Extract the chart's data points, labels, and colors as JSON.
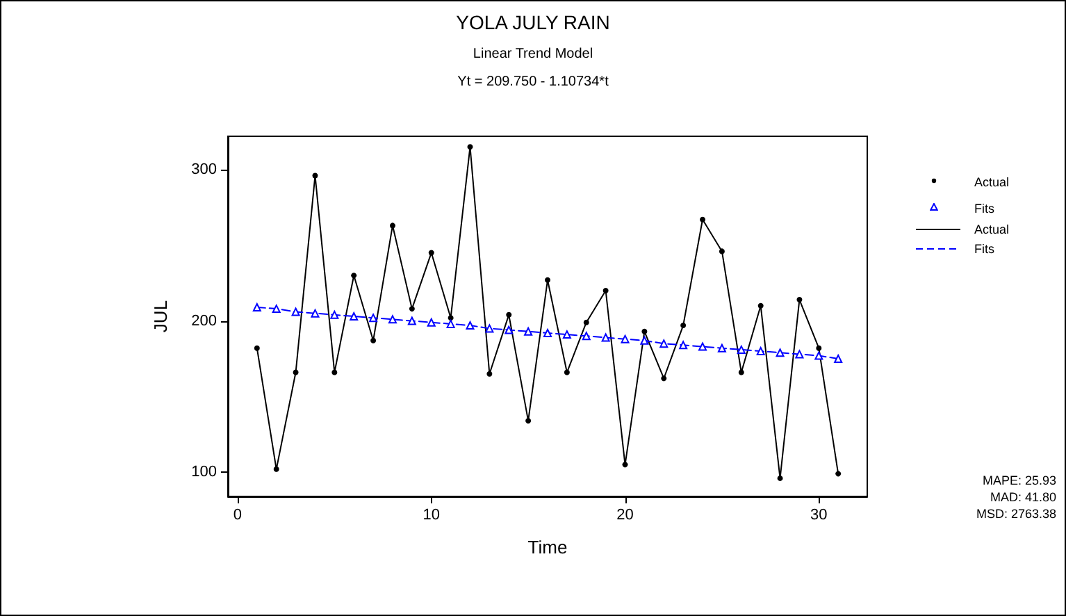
{
  "chart_data": {
    "type": "line",
    "title": "YOLA JULY RAIN",
    "subtitle": "Linear Trend Model\nYt = 209.750 - 1.10734*t",
    "xlabel": "Time",
    "ylabel": "JUL",
    "x": [
      1,
      2,
      3,
      4,
      5,
      6,
      7,
      8,
      9,
      10,
      11,
      12,
      13,
      14,
      15,
      16,
      17,
      18,
      19,
      20,
      21,
      22,
      23,
      24,
      25,
      26,
      27,
      28,
      29,
      30,
      31
    ],
    "series": [
      {
        "name": "Actual",
        "color": "#000000",
        "marker": "circle",
        "line_style": "solid",
        "values": [
          182,
          102,
          166,
          296,
          166,
          230,
          187,
          263,
          208,
          245,
          202,
          315,
          165,
          204,
          134,
          227,
          166,
          199,
          220,
          105,
          193,
          162,
          197,
          267,
          246,
          166,
          210,
          96,
          214,
          182,
          99
        ]
      },
      {
        "name": "Fits",
        "color": "#0000ff",
        "marker": "triangle",
        "line_style": "dashed",
        "values": [
          209,
          208,
          206,
          205,
          204,
          203,
          202,
          201,
          200,
          199,
          198,
          197,
          195,
          194,
          193,
          192,
          191,
          190,
          189,
          188,
          187,
          185,
          184,
          183,
          182,
          181,
          180,
          179,
          178,
          177,
          175
        ]
      }
    ],
    "xlim": [
      -0.5,
      32.5
    ],
    "xticks": [
      0,
      10,
      20,
      30
    ],
    "ylim": [
      84,
      322
    ],
    "yticks": [
      100,
      200,
      300
    ],
    "grid": false,
    "legend": "top right",
    "annotations": [
      "MAPE: 25.93",
      "MAD: 41.80",
      "MSD: 2763.38"
    ]
  }
}
